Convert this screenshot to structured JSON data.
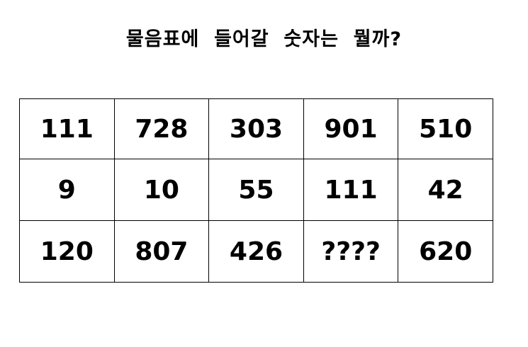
{
  "puzzle": {
    "title": "물음표에  들어갈  숫자는  뭘까?",
    "rows": [
      [
        "111",
        "728",
        "303",
        "901",
        "510"
      ],
      [
        "9",
        "10",
        "55",
        "111",
        "42"
      ],
      [
        "120",
        "807",
        "426",
        "????",
        "620"
      ]
    ]
  }
}
